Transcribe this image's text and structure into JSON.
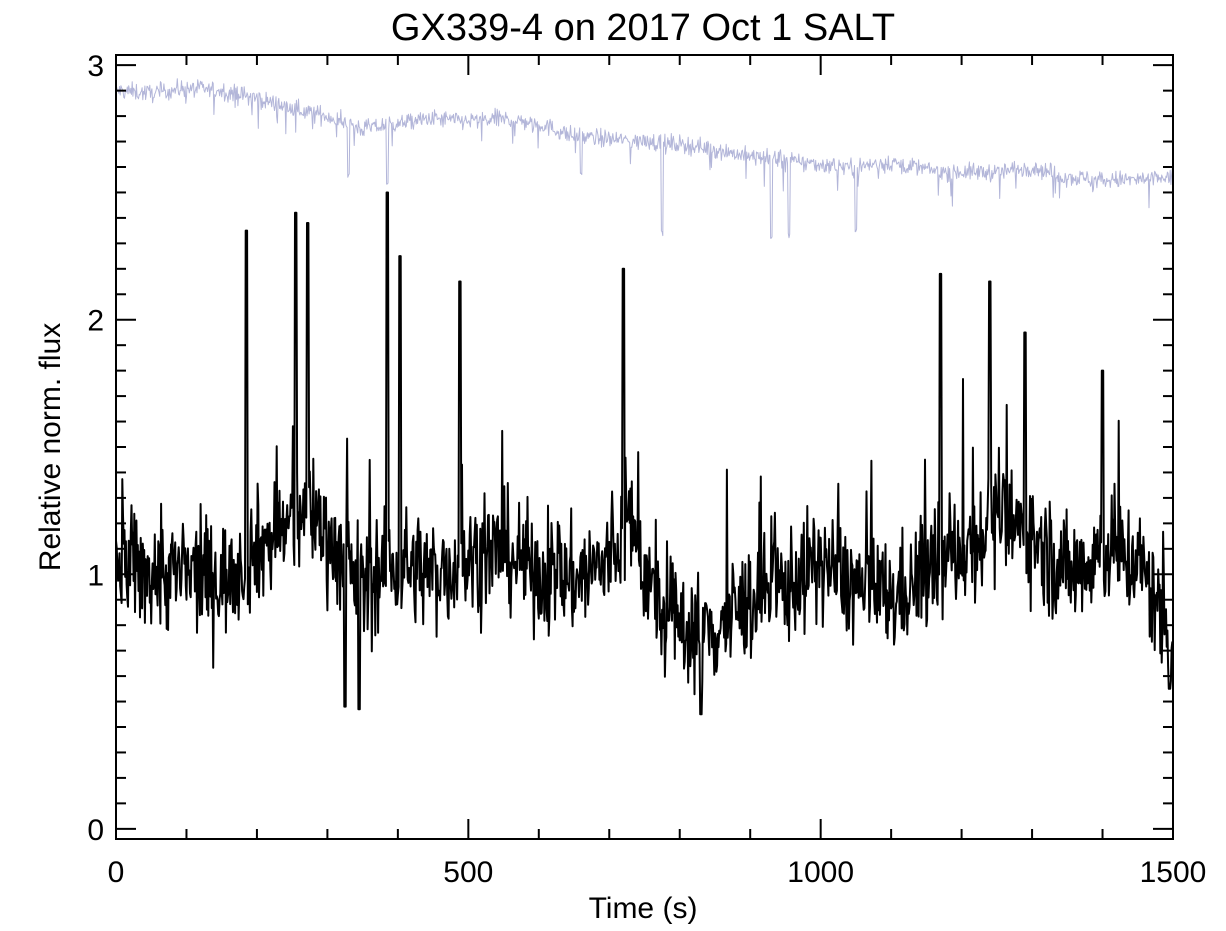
{
  "chart_data": {
    "type": "line",
    "title": "GX339-4 on 2017 Oct 1 SALT",
    "xlabel": "Time (s)",
    "ylabel": "Relative norm. flux",
    "xlim": [
      0,
      1500
    ],
    "ylim": [
      -0.04,
      3.04
    ],
    "x_ticks": [
      0,
      500,
      1000,
      1500
    ],
    "x_tick_labels": [
      "0",
      "500",
      "1000",
      "1500"
    ],
    "x_minor_step": 100,
    "y_ticks": [
      0,
      1,
      2,
      3
    ],
    "y_tick_labels": [
      "0",
      "1",
      "2",
      "3"
    ],
    "y_minor_step": 0.1,
    "grid": false,
    "legend": "none",
    "series": [
      {
        "color": "#b3b6d9",
        "cadence_s": 1,
        "description_of_trend": "comparison",
        "x_knots": [
          0,
          50,
          100,
          150,
          200,
          250,
          300,
          350,
          400,
          450,
          500,
          550,
          600,
          650,
          700,
          750,
          800,
          850,
          900,
          950,
          1000,
          1050,
          1100,
          1150,
          1200,
          1250,
          1300,
          1350,
          1400,
          1450,
          1500
        ],
        "y_knots": [
          2.9,
          2.89,
          2.91,
          2.9,
          2.87,
          2.83,
          2.8,
          2.75,
          2.77,
          2.79,
          2.78,
          2.79,
          2.77,
          2.72,
          2.71,
          2.7,
          2.69,
          2.67,
          2.64,
          2.63,
          2.61,
          2.6,
          2.62,
          2.59,
          2.58,
          2.58,
          2.6,
          2.56,
          2.55,
          2.55,
          2.56
        ],
        "dips": [
          [
            385,
            2.52
          ],
          [
            330,
            2.56
          ],
          [
            660,
            2.57
          ],
          [
            775,
            2.33
          ],
          [
            930,
            2.31
          ],
          [
            955,
            2.32
          ],
          [
            1050,
            2.34
          ]
        ]
      },
      {
        "color": "#000000",
        "cadence_s": 1,
        "x_knots": [
          0,
          50,
          100,
          150,
          200,
          250,
          280,
          300,
          350,
          400,
          450,
          500,
          550,
          600,
          650,
          700,
          730,
          770,
          800,
          850,
          900,
          950,
          1000,
          1050,
          1100,
          1150,
          1200,
          1250,
          1300,
          1350,
          1400,
          1450,
          1500
        ],
        "y_knots": [
          1.05,
          1.0,
          1.0,
          0.98,
          1.1,
          1.2,
          1.25,
          1.15,
          0.95,
          1.05,
          1.0,
          1.05,
          1.1,
          1.0,
          0.98,
          1.05,
          1.2,
          0.85,
          0.8,
          0.78,
          0.9,
          0.95,
          1.05,
          0.95,
          0.9,
          1.0,
          1.1,
          1.2,
          1.15,
          1.0,
          1.1,
          1.05,
          0.75
        ],
        "peaks": [
          [
            185,
            2.35
          ],
          [
            255,
            2.42
          ],
          [
            272,
            2.38
          ],
          [
            385,
            2.5
          ],
          [
            403,
            2.25
          ],
          [
            488,
            2.15
          ],
          [
            720,
            2.2
          ],
          [
            1170,
            2.18
          ],
          [
            1240,
            2.15
          ],
          [
            1290,
            1.95
          ],
          [
            1400,
            1.8
          ]
        ],
        "troughs": [
          [
            325,
            0.48
          ],
          [
            345,
            0.47
          ],
          [
            830,
            0.45
          ],
          [
            1495,
            0.55
          ]
        ]
      }
    ]
  }
}
